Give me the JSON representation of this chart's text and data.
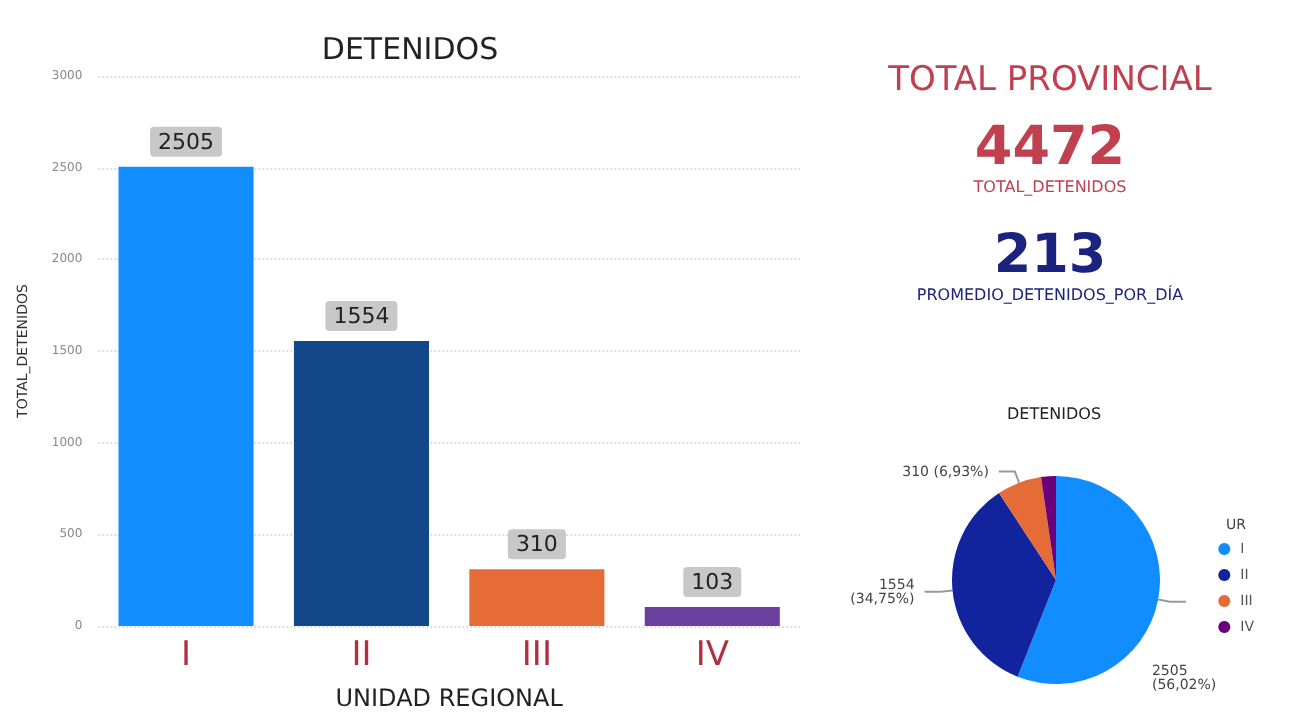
{
  "chart_data": [
    {
      "type": "bar",
      "title": "DETENIDOS",
      "xlabel": "UNIDAD REGIONAL",
      "ylabel": "TOTAL_DETENIDOS",
      "categories": [
        "I",
        "II",
        "III",
        "IV"
      ],
      "values": [
        2505,
        1554,
        310,
        103
      ],
      "colors": [
        "#118dff",
        "#12478a",
        "#e66c37",
        "#6b3fa0"
      ],
      "ylim": [
        0,
        3000
      ],
      "yticks": [
        0,
        500,
        1000,
        1500,
        2000,
        2500,
        3000
      ],
      "grid": "y",
      "data_labels": true,
      "legend": false
    },
    {
      "type": "other",
      "title": "TOTAL PROVINCIAL",
      "annotations": [
        "4472",
        "TOTAL_DETENIDOS",
        "213",
        "PROMEDIO_DETENIDOS_POR_DÍA"
      ]
    },
    {
      "type": "pie",
      "title": "DETENIDOS",
      "legend_title": "UR",
      "categories": [
        "I",
        "II",
        "III",
        "IV"
      ],
      "values": [
        2505,
        1554,
        310,
        103
      ],
      "colors": [
        "#118dff",
        "#12239e",
        "#e66c37",
        "#6b007b"
      ],
      "value_labels": [
        "2505\n(56,02%)",
        "1554\n(34,75%)",
        "310 (6,93%)",
        null
      ],
      "legend": "right"
    }
  ]
}
